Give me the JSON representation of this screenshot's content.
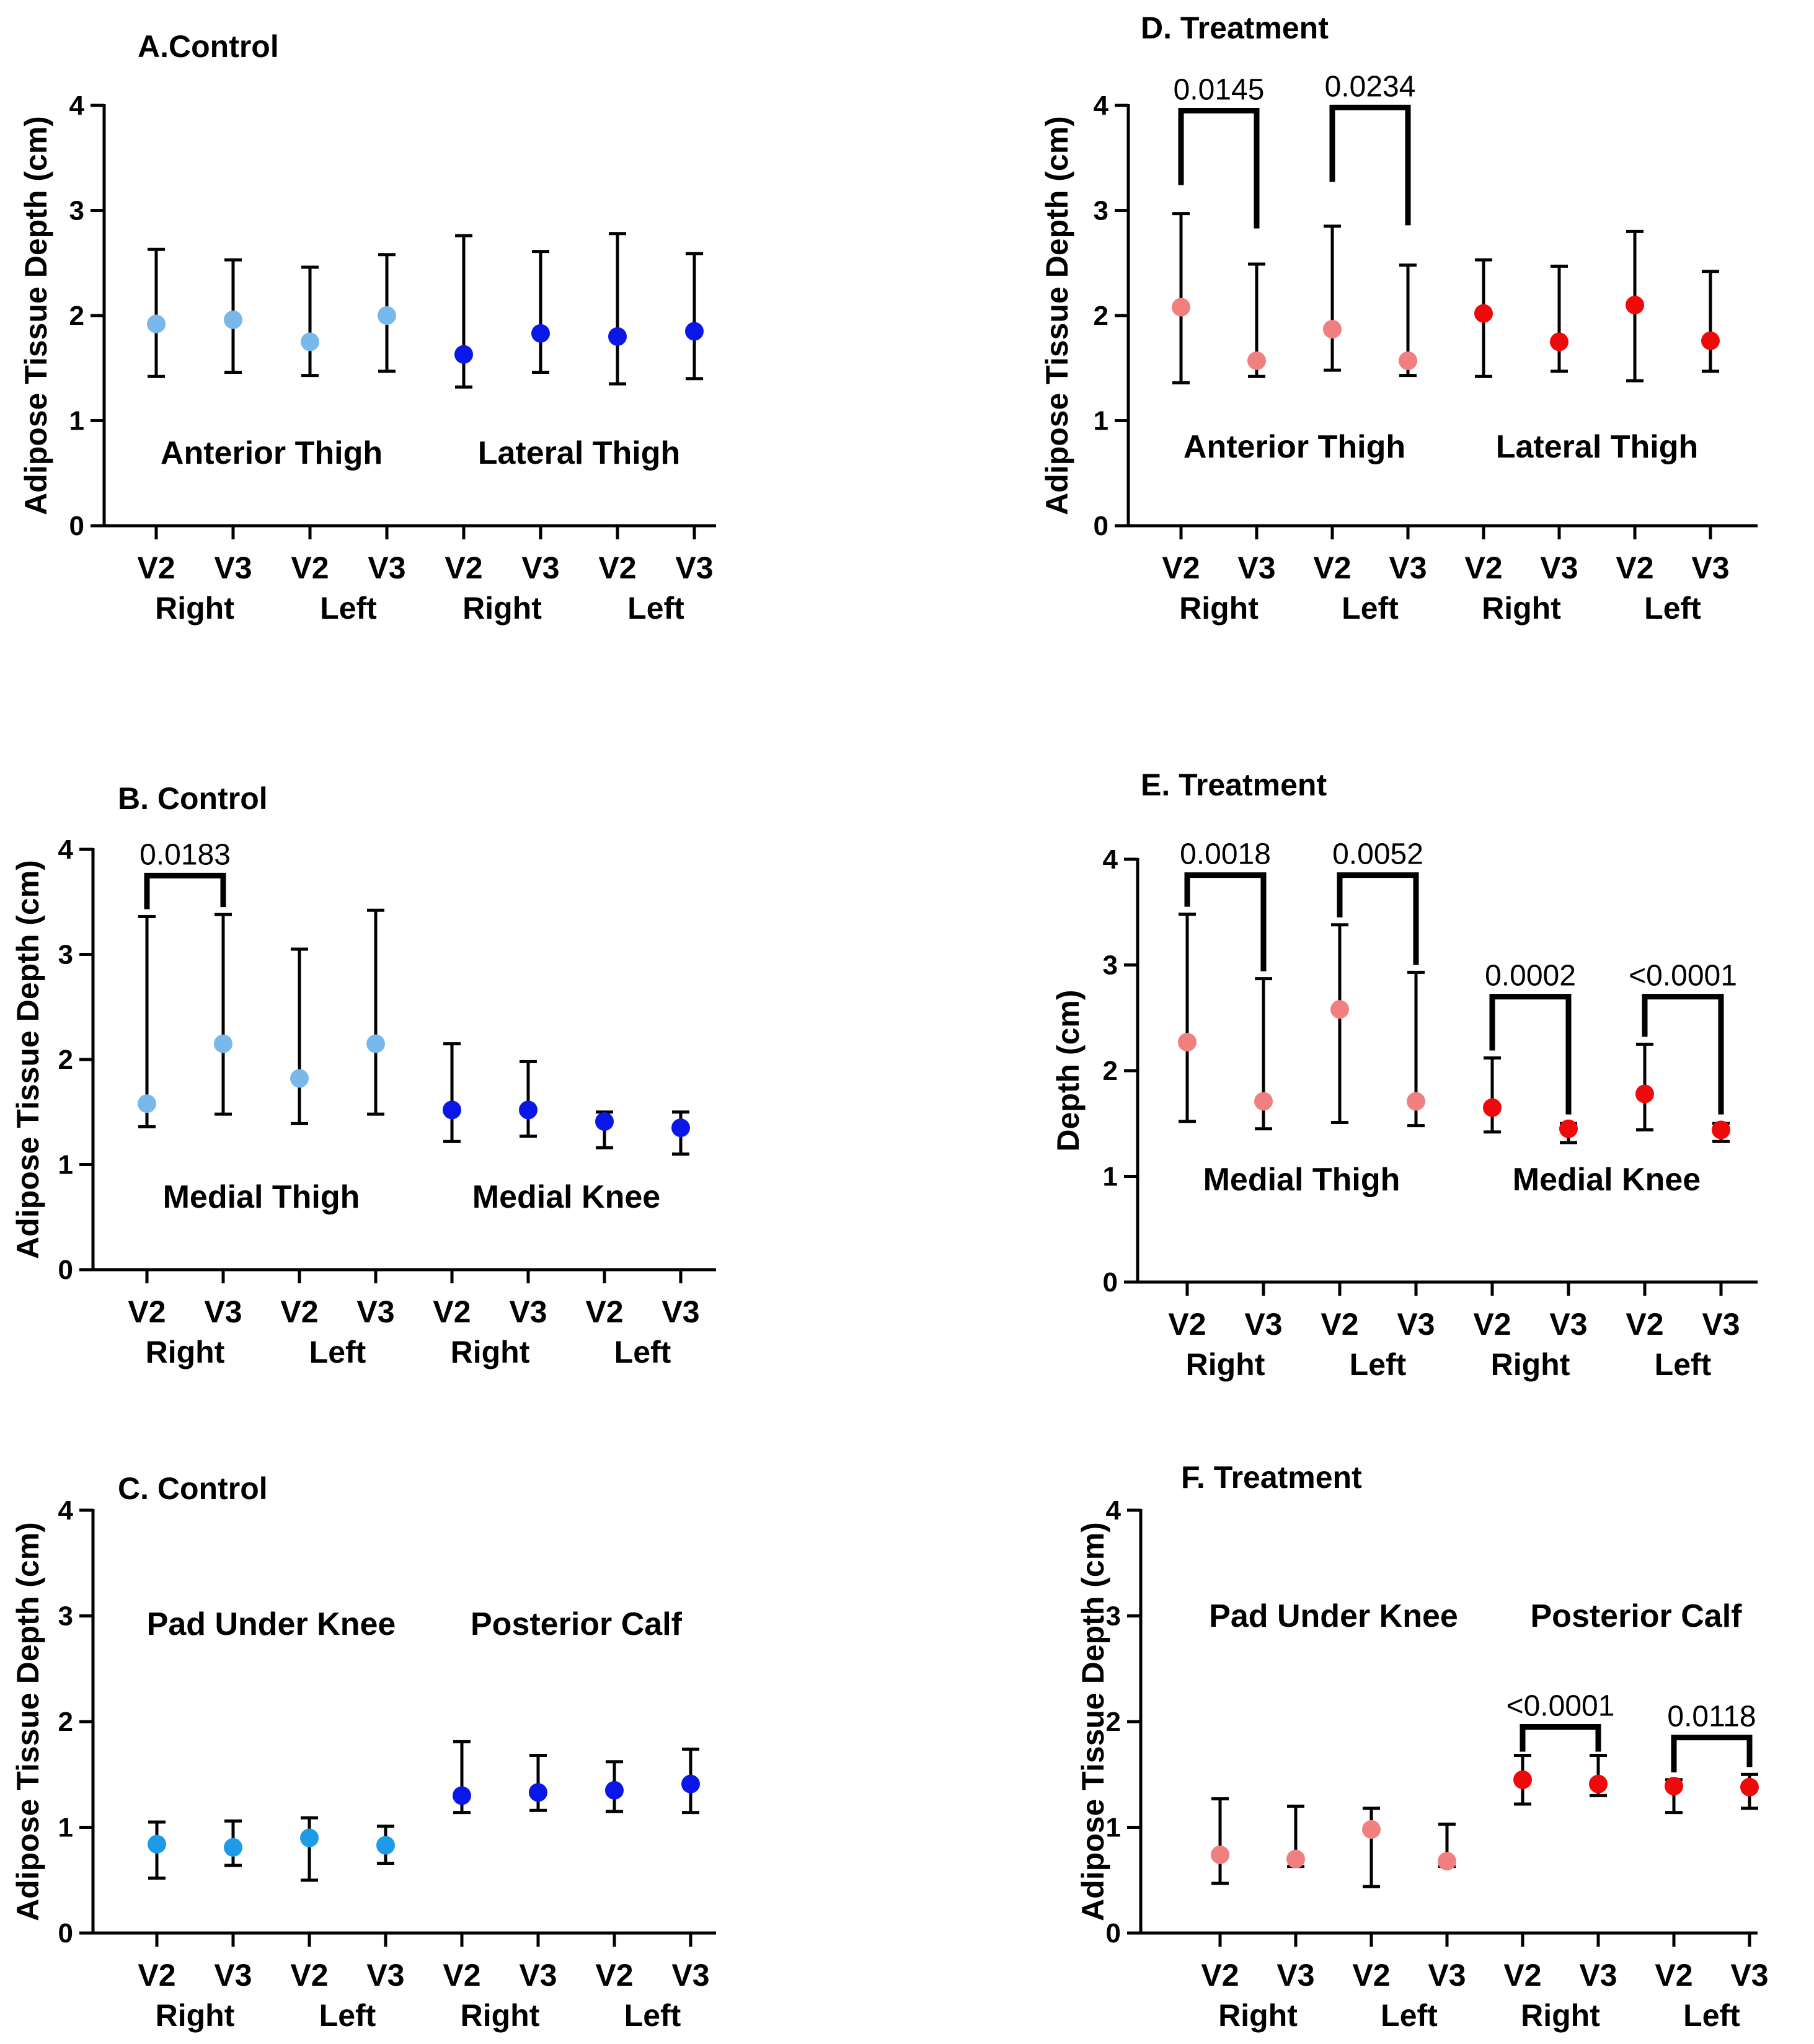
{
  "chart_data": [
    {
      "type": "scatter",
      "title": "A.Control",
      "ylabel": "Adipose Tissue Depth (cm)",
      "ylim": [
        0,
        4
      ],
      "yticks": [
        "0",
        "1",
        "2",
        "3",
        "4"
      ],
      "categories": [
        "V2",
        "V3",
        "V2",
        "V3",
        "V2",
        "V3",
        "V2",
        "V3"
      ],
      "sides": [
        "Right",
        "Left",
        "Right",
        "Left"
      ],
      "regions": [
        "Anterior Thigh",
        "Lateral Thigh"
      ],
      "colors": [
        "#79b8ea",
        "#79b8ea",
        "#79b8ea",
        "#79b8ea",
        "#0a17e6",
        "#0a17e6",
        "#0a17e6",
        "#0a17e6"
      ],
      "values": [
        1.92,
        1.96,
        1.75,
        2.0,
        1.63,
        1.83,
        1.8,
        1.85
      ],
      "err_low": [
        1.42,
        1.46,
        1.43,
        1.47,
        1.32,
        1.46,
        1.35,
        1.4
      ],
      "err_high": [
        2.63,
        2.53,
        2.46,
        2.58,
        2.76,
        2.61,
        2.78,
        2.59
      ],
      "brackets": []
    },
    {
      "type": "scatter",
      "title": "B. Control",
      "ylabel": "Adipose Tissue Depth (cm)",
      "ylim": [
        0,
        4
      ],
      "yticks": [
        "0",
        "1",
        "2",
        "3",
        "4"
      ],
      "categories": [
        "V2",
        "V3",
        "V2",
        "V3",
        "V2",
        "V3",
        "V2",
        "V3"
      ],
      "sides": [
        "Right",
        "Left",
        "Right",
        "Left"
      ],
      "regions": [
        "Medial Thigh",
        "Medial Knee"
      ],
      "colors": [
        "#79b8ea",
        "#79b8ea",
        "#79b8ea",
        "#79b8ea",
        "#0a17e6",
        "#0a17e6",
        "#0a17e6",
        "#0a17e6"
      ],
      "values": [
        1.58,
        2.15,
        1.82,
        2.15,
        1.52,
        1.52,
        1.41,
        1.35
      ],
      "err_low": [
        1.36,
        1.48,
        1.39,
        1.48,
        1.22,
        1.27,
        1.16,
        1.1
      ],
      "err_high": [
        3.36,
        3.38,
        3.05,
        3.42,
        2.15,
        1.98,
        1.5,
        1.5
      ],
      "brackets": [
        {
          "from": 0,
          "to": 1,
          "y": 3.75,
          "label": "0.0183"
        }
      ]
    },
    {
      "type": "scatter",
      "title": "C. Control",
      "ylabel": "Adipose Tissue Depth (cm)",
      "ylim": [
        0,
        4
      ],
      "yticks": [
        "0",
        "1",
        "2",
        "3",
        "4"
      ],
      "categories": [
        "V2",
        "V3",
        "V2",
        "V3",
        "V2",
        "V3",
        "V2",
        "V3"
      ],
      "sides": [
        "Right",
        "Left",
        "Right",
        "Left"
      ],
      "regions": [
        "Pad Under Knee",
        "Posterior Calf"
      ],
      "colors": [
        "#1e9be8",
        "#1e9be8",
        "#1e9be8",
        "#1e9be8",
        "#0a17e6",
        "#0a17e6",
        "#0a17e6",
        "#0a17e6"
      ],
      "values": [
        0.84,
        0.81,
        0.9,
        0.83,
        1.3,
        1.33,
        1.35,
        1.41
      ],
      "err_low": [
        0.52,
        0.64,
        0.5,
        0.66,
        1.14,
        1.16,
        1.15,
        1.14
      ],
      "err_high": [
        1.05,
        1.06,
        1.09,
        1.01,
        1.81,
        1.68,
        1.62,
        1.74
      ],
      "brackets": []
    },
    {
      "type": "scatter",
      "title": "D. Treatment",
      "ylabel": "Adipose Tissue Depth (cm)",
      "ylim": [
        0,
        4
      ],
      "yticks": [
        "0",
        "1",
        "2",
        "3",
        "4"
      ],
      "categories": [
        "V2",
        "V3",
        "V2",
        "V3",
        "V2",
        "V3",
        "V2",
        "V3"
      ],
      "sides": [
        "Right",
        "Left",
        "Right",
        "Left"
      ],
      "regions": [
        "Anterior Thigh",
        "Lateral Thigh"
      ],
      "colors": [
        "#f08080",
        "#f08080",
        "#f08080",
        "#f08080",
        "#ee0a0a",
        "#ee0a0a",
        "#ee0a0a",
        "#ee0a0a"
      ],
      "values": [
        2.08,
        1.57,
        1.87,
        1.57,
        2.02,
        1.75,
        2.1,
        1.76
      ],
      "err_low": [
        1.36,
        1.42,
        1.48,
        1.43,
        1.42,
        1.47,
        1.38,
        1.47
      ],
      "err_high": [
        2.97,
        2.49,
        2.85,
        2.48,
        2.53,
        2.47,
        2.8,
        2.42
      ],
      "brackets": [
        {
          "from": 0,
          "to": 1,
          "y": 3.95,
          "label": "0.0145"
        },
        {
          "from": 2,
          "to": 3,
          "y": 3.98,
          "label": "0.0234"
        }
      ]
    },
    {
      "type": "scatter",
      "title": "E. Treatment",
      "ylabel": "Depth (cm)",
      "ylim": [
        0,
        4
      ],
      "yticks": [
        "0",
        "1",
        "2",
        "3",
        "4"
      ],
      "categories": [
        "V2",
        "V3",
        "V2",
        "V3",
        "V2",
        "V3",
        "V2",
        "V3"
      ],
      "sides": [
        "Right",
        "Left",
        "Right",
        "Left"
      ],
      "regions": [
        "Medial Thigh",
        "Medial Knee"
      ],
      "colors": [
        "#f08080",
        "#f08080",
        "#f08080",
        "#f08080",
        "#ee0a0a",
        "#ee0a0a",
        "#ee0a0a",
        "#ee0a0a"
      ],
      "values": [
        2.27,
        1.71,
        2.58,
        1.71,
        1.65,
        1.45,
        1.78,
        1.44
      ],
      "err_low": [
        1.52,
        1.45,
        1.51,
        1.48,
        1.42,
        1.32,
        1.44,
        1.33
      ],
      "err_high": [
        3.48,
        2.87,
        3.38,
        2.93,
        2.12,
        1.5,
        2.25,
        1.5
      ],
      "brackets": [
        {
          "from": 0,
          "to": 1,
          "y": 3.85,
          "label": "0.0018"
        },
        {
          "from": 2,
          "to": 3,
          "y": 3.85,
          "label": "0.0052"
        },
        {
          "from": 4,
          "to": 5,
          "y": 2.7,
          "label": "0.0002"
        },
        {
          "from": 6,
          "to": 7,
          "y": 2.7,
          "label": "<0.0001"
        }
      ]
    },
    {
      "type": "scatter",
      "title": "F. Treatment",
      "ylabel": "Adipose Tissue Depth (cm)",
      "ylim": [
        0,
        4
      ],
      "yticks": [
        "0",
        "1",
        "2",
        "3",
        "4"
      ],
      "categories": [
        "V2",
        "V3",
        "V2",
        "V3",
        "V2",
        "V3",
        "V2",
        "V3"
      ],
      "sides": [
        "Right",
        "Left",
        "Right",
        "Left"
      ],
      "regions": [
        "Pad Under Knee",
        "Posterior Calf"
      ],
      "colors": [
        "#f08080",
        "#f08080",
        "#f08080",
        "#f08080",
        "#ee0a0a",
        "#ee0a0a",
        "#ee0a0a",
        "#ee0a0a"
      ],
      "values": [
        0.74,
        0.7,
        0.98,
        0.68,
        1.45,
        1.41,
        1.39,
        1.38
      ],
      "err_low": [
        0.47,
        0.63,
        0.44,
        0.63,
        1.22,
        1.3,
        1.14,
        1.18
      ],
      "err_high": [
        1.27,
        1.2,
        1.18,
        1.03,
        1.68,
        1.68,
        1.45,
        1.5
      ],
      "brackets": [
        {
          "from": 4,
          "to": 5,
          "y": 1.95,
          "label": "<0.0001"
        },
        {
          "from": 6,
          "to": 7,
          "y": 1.85,
          "label": "0.0118"
        }
      ]
    }
  ]
}
